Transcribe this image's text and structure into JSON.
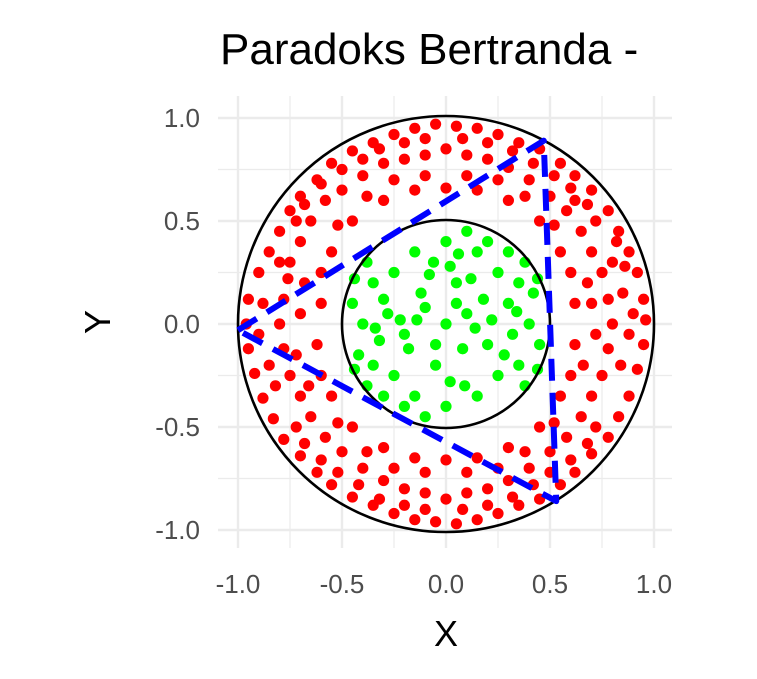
{
  "chart_data": {
    "type": "scatter",
    "title": "Paradoks Bertranda -",
    "xlabel": "X",
    "ylabel": "Y",
    "xlim": [
      -1.0,
      1.0
    ],
    "ylim": [
      -1.0,
      1.0
    ],
    "x_ticks": [
      "-1.0",
      "-0.5",
      "0.0",
      "0.5",
      "1.0"
    ],
    "y_ticks": [
      "1.0",
      "0.5",
      "0.0",
      "-0.5",
      "-1.0"
    ],
    "x_tick_values": [
      -1.0,
      -0.5,
      0.0,
      0.5,
      1.0
    ],
    "y_tick_values": [
      1.0,
      0.5,
      0.0,
      -0.5,
      -1.0
    ],
    "grid": true,
    "legend": "none",
    "circles": [
      {
        "role": "outer-circle",
        "cx": 0,
        "cy": 0,
        "r": 1.0,
        "color": "#000000"
      },
      {
        "role": "inner-circle",
        "cx": 0,
        "cy": 0,
        "r": 0.5,
        "color": "#000000"
      }
    ],
    "triangle": {
      "vertices": [
        [
          -1.0,
          -0.03
        ],
        [
          0.47,
          0.89
        ],
        [
          0.53,
          -0.86
        ]
      ],
      "color": "#0000ff",
      "style": "dashed"
    },
    "series": [
      {
        "color": "#ff0000",
        "rule": "0.5 < r <= 1.0",
        "points": [
          [
            -0.9,
            0.25
          ],
          [
            -0.85,
            0.35
          ],
          [
            -0.8,
            0.45
          ],
          [
            -0.75,
            0.55
          ],
          [
            -0.7,
            0.62
          ],
          [
            -0.62,
            0.7
          ],
          [
            -0.55,
            0.78
          ],
          [
            -0.45,
            0.84
          ],
          [
            -0.35,
            0.88
          ],
          [
            -0.25,
            0.92
          ],
          [
            -0.15,
            0.95
          ],
          [
            -0.05,
            0.97
          ],
          [
            0.05,
            0.96
          ],
          [
            0.15,
            0.95
          ],
          [
            0.25,
            0.92
          ],
          [
            0.35,
            0.88
          ],
          [
            0.45,
            0.85
          ],
          [
            0.55,
            0.78
          ],
          [
            0.62,
            0.72
          ],
          [
            0.7,
            0.65
          ],
          [
            0.78,
            0.55
          ],
          [
            0.83,
            0.45
          ],
          [
            0.88,
            0.35
          ],
          [
            0.92,
            0.25
          ],
          [
            0.95,
            0.12
          ],
          [
            0.96,
            0.02
          ],
          [
            0.95,
            -0.1
          ],
          [
            0.92,
            -0.22
          ],
          [
            0.88,
            -0.35
          ],
          [
            0.83,
            -0.45
          ],
          [
            0.78,
            -0.55
          ],
          [
            0.7,
            -0.63
          ],
          [
            0.62,
            -0.72
          ],
          [
            0.55,
            -0.78
          ],
          [
            0.45,
            -0.85
          ],
          [
            0.35,
            -0.88
          ],
          [
            0.25,
            -0.92
          ],
          [
            0.15,
            -0.95
          ],
          [
            0.05,
            -0.97
          ],
          [
            -0.05,
            -0.96
          ],
          [
            -0.15,
            -0.95
          ],
          [
            -0.25,
            -0.92
          ],
          [
            -0.35,
            -0.88
          ],
          [
            -0.45,
            -0.84
          ],
          [
            -0.55,
            -0.78
          ],
          [
            -0.62,
            -0.72
          ],
          [
            -0.7,
            -0.64
          ],
          [
            -0.78,
            -0.56
          ],
          [
            -0.83,
            -0.46
          ],
          [
            -0.88,
            -0.36
          ],
          [
            -0.92,
            -0.24
          ],
          [
            -0.95,
            -0.12
          ],
          [
            -0.96,
            0.0
          ],
          [
            -0.95,
            0.12
          ],
          [
            -0.75,
            0.3
          ],
          [
            -0.7,
            0.4
          ],
          [
            -0.65,
            0.5
          ],
          [
            -0.58,
            0.6
          ],
          [
            -0.5,
            0.65
          ],
          [
            -0.4,
            0.72
          ],
          [
            -0.3,
            0.78
          ],
          [
            -0.2,
            0.8
          ],
          [
            -0.1,
            0.82
          ],
          [
            0.0,
            0.85
          ],
          [
            0.1,
            0.82
          ],
          [
            0.2,
            0.8
          ],
          [
            0.3,
            0.76
          ],
          [
            0.4,
            0.7
          ],
          [
            0.5,
            0.62
          ],
          [
            0.58,
            0.55
          ],
          [
            0.65,
            0.45
          ],
          [
            0.7,
            0.35
          ],
          [
            0.75,
            0.25
          ],
          [
            0.78,
            0.12
          ],
          [
            0.8,
            0.0
          ],
          [
            0.78,
            -0.12
          ],
          [
            0.75,
            -0.25
          ],
          [
            0.7,
            -0.35
          ],
          [
            0.65,
            -0.45
          ],
          [
            0.58,
            -0.55
          ],
          [
            0.5,
            -0.62
          ],
          [
            0.4,
            -0.7
          ],
          [
            0.3,
            -0.76
          ],
          [
            0.2,
            -0.8
          ],
          [
            0.1,
            -0.82
          ],
          [
            0.0,
            -0.85
          ],
          [
            -0.1,
            -0.82
          ],
          [
            -0.2,
            -0.8
          ],
          [
            -0.3,
            -0.76
          ],
          [
            -0.4,
            -0.7
          ],
          [
            -0.5,
            -0.62
          ],
          [
            -0.58,
            -0.55
          ],
          [
            -0.65,
            -0.45
          ],
          [
            -0.7,
            -0.35
          ],
          [
            -0.75,
            -0.25
          ],
          [
            -0.78,
            -0.12
          ],
          [
            -0.8,
            0.0
          ],
          [
            -0.78,
            0.12
          ],
          [
            -0.76,
            0.22
          ],
          [
            -0.6,
            0.1
          ],
          [
            -0.62,
            -0.1
          ],
          [
            -0.6,
            0.25
          ],
          [
            -0.6,
            -0.25
          ],
          [
            -0.55,
            0.35
          ],
          [
            -0.55,
            -0.35
          ],
          [
            -0.45,
            0.5
          ],
          [
            -0.45,
            -0.5
          ],
          [
            -0.3,
            0.6
          ],
          [
            -0.3,
            -0.6
          ],
          [
            -0.15,
            0.65
          ],
          [
            -0.15,
            -0.65
          ],
          [
            0.0,
            0.66
          ],
          [
            0.0,
            -0.66
          ],
          [
            0.15,
            0.65
          ],
          [
            0.15,
            -0.65
          ],
          [
            0.3,
            0.6
          ],
          [
            0.3,
            -0.6
          ],
          [
            0.45,
            0.5
          ],
          [
            0.45,
            -0.5
          ],
          [
            0.55,
            0.35
          ],
          [
            0.55,
            -0.35
          ],
          [
            0.6,
            0.25
          ],
          [
            0.6,
            -0.25
          ],
          [
            0.62,
            0.1
          ],
          [
            0.62,
            -0.1
          ],
          [
            0.85,
            0.15
          ],
          [
            0.88,
            -0.05
          ],
          [
            0.9,
            0.05
          ],
          [
            0.84,
            -0.2
          ],
          [
            0.8,
            0.3
          ],
          [
            0.72,
            0.5
          ],
          [
            0.62,
            0.6
          ],
          [
            0.68,
            0.58
          ],
          [
            0.82,
            0.4
          ],
          [
            0.86,
            0.28
          ],
          [
            -0.88,
            0.1
          ],
          [
            -0.9,
            -0.05
          ],
          [
            -0.85,
            -0.2
          ],
          [
            -0.82,
            -0.3
          ],
          [
            -0.8,
            0.3
          ],
          [
            -0.72,
            0.5
          ],
          [
            -0.68,
            0.58
          ],
          [
            -0.6,
            0.68
          ],
          [
            -0.5,
            0.75
          ],
          [
            -0.4,
            0.8
          ],
          [
            -0.32,
            0.85
          ],
          [
            -0.2,
            0.88
          ],
          [
            -0.1,
            0.9
          ],
          [
            0.08,
            0.9
          ],
          [
            0.2,
            0.88
          ],
          [
            0.32,
            0.84
          ],
          [
            0.42,
            0.78
          ],
          [
            0.52,
            0.72
          ],
          [
            0.6,
            0.66
          ],
          [
            0.5,
            -0.72
          ],
          [
            0.42,
            -0.78
          ],
          [
            0.32,
            -0.84
          ],
          [
            0.2,
            -0.88
          ],
          [
            0.08,
            -0.9
          ],
          [
            -0.1,
            -0.9
          ],
          [
            -0.2,
            -0.88
          ],
          [
            -0.32,
            -0.85
          ],
          [
            -0.42,
            -0.78
          ],
          [
            -0.52,
            -0.72
          ],
          [
            -0.6,
            -0.66
          ],
          [
            -0.68,
            -0.58
          ],
          [
            -0.72,
            -0.5
          ],
          [
            0.72,
            -0.5
          ],
          [
            0.68,
            -0.58
          ],
          [
            0.6,
            -0.66
          ],
          [
            0.7,
            0.1
          ],
          [
            0.72,
            -0.05
          ],
          [
            0.68,
            0.2
          ],
          [
            0.66,
            -0.2
          ],
          [
            -0.7,
            0.05
          ],
          [
            -0.72,
            -0.15
          ],
          [
            -0.68,
            0.2
          ],
          [
            -0.66,
            -0.3
          ],
          [
            0.1,
            0.72
          ],
          [
            -0.1,
            0.72
          ],
          [
            0.25,
            0.7
          ],
          [
            -0.25,
            0.7
          ],
          [
            0.1,
            -0.72
          ],
          [
            -0.1,
            -0.72
          ],
          [
            0.25,
            -0.7
          ],
          [
            -0.25,
            -0.7
          ],
          [
            0.38,
            0.62
          ],
          [
            -0.38,
            0.62
          ],
          [
            0.38,
            -0.62
          ],
          [
            -0.38,
            -0.62
          ],
          [
            0.52,
            0.48
          ],
          [
            -0.52,
            0.48
          ],
          [
            0.52,
            -0.48
          ],
          [
            -0.52,
            -0.48
          ]
        ]
      },
      {
        "color": "#00ff00",
        "rule": "r <= 0.5",
        "points": [
          [
            0.0,
            0.0
          ],
          [
            0.1,
            0.05
          ],
          [
            -0.1,
            0.08
          ],
          [
            0.2,
            -0.1
          ],
          [
            -0.2,
            -0.05
          ],
          [
            0.05,
            0.2
          ],
          [
            -0.05,
            -0.2
          ],
          [
            0.3,
            0.1
          ],
          [
            -0.3,
            0.12
          ],
          [
            0.25,
            0.25
          ],
          [
            -0.25,
            0.25
          ],
          [
            0.25,
            -0.25
          ],
          [
            -0.25,
            -0.25
          ],
          [
            0.4,
            0.0
          ],
          [
            -0.4,
            0.0
          ],
          [
            0.0,
            0.4
          ],
          [
            0.0,
            -0.4
          ],
          [
            0.15,
            0.35
          ],
          [
            -0.15,
            0.35
          ],
          [
            0.15,
            -0.35
          ],
          [
            -0.15,
            -0.35
          ],
          [
            0.35,
            0.2
          ],
          [
            -0.35,
            0.2
          ],
          [
            0.35,
            -0.2
          ],
          [
            -0.35,
            -0.2
          ],
          [
            0.42,
            0.15
          ],
          [
            -0.42,
            -0.15
          ],
          [
            0.1,
            0.45
          ],
          [
            -0.1,
            -0.45
          ],
          [
            0.3,
            0.35
          ],
          [
            -0.3,
            -0.35
          ],
          [
            0.45,
            -0.1
          ],
          [
            -0.45,
            0.1
          ],
          [
            0.2,
            0.4
          ],
          [
            -0.2,
            -0.4
          ],
          [
            0.08,
            -0.12
          ],
          [
            -0.12,
            0.15
          ],
          [
            0.18,
            0.12
          ],
          [
            -0.18,
            -0.12
          ],
          [
            0.22,
            0.02
          ],
          [
            -0.22,
            0.02
          ],
          [
            0.02,
            0.28
          ],
          [
            0.02,
            -0.28
          ],
          [
            0.32,
            -0.05
          ],
          [
            -0.32,
            -0.08
          ],
          [
            0.12,
            0.22
          ],
          [
            -0.08,
            0.24
          ],
          [
            0.28,
            -0.15
          ],
          [
            -0.28,
            0.05
          ],
          [
            0.38,
            0.3
          ],
          [
            -0.38,
            0.3
          ],
          [
            0.38,
            -0.3
          ],
          [
            -0.38,
            -0.3
          ],
          [
            0.44,
            0.22
          ],
          [
            -0.44,
            0.22
          ],
          [
            0.44,
            -0.22
          ],
          [
            -0.44,
            -0.22
          ],
          [
            0.05,
            0.1
          ],
          [
            -0.05,
            -0.1
          ],
          [
            0.14,
            -0.02
          ],
          [
            -0.14,
            0.02
          ],
          [
            0.06,
            0.34
          ],
          [
            -0.06,
            0.3
          ],
          [
            0.09,
            -0.3
          ],
          [
            0.34,
            0.06
          ],
          [
            -0.34,
            -0.02
          ]
        ]
      }
    ]
  }
}
